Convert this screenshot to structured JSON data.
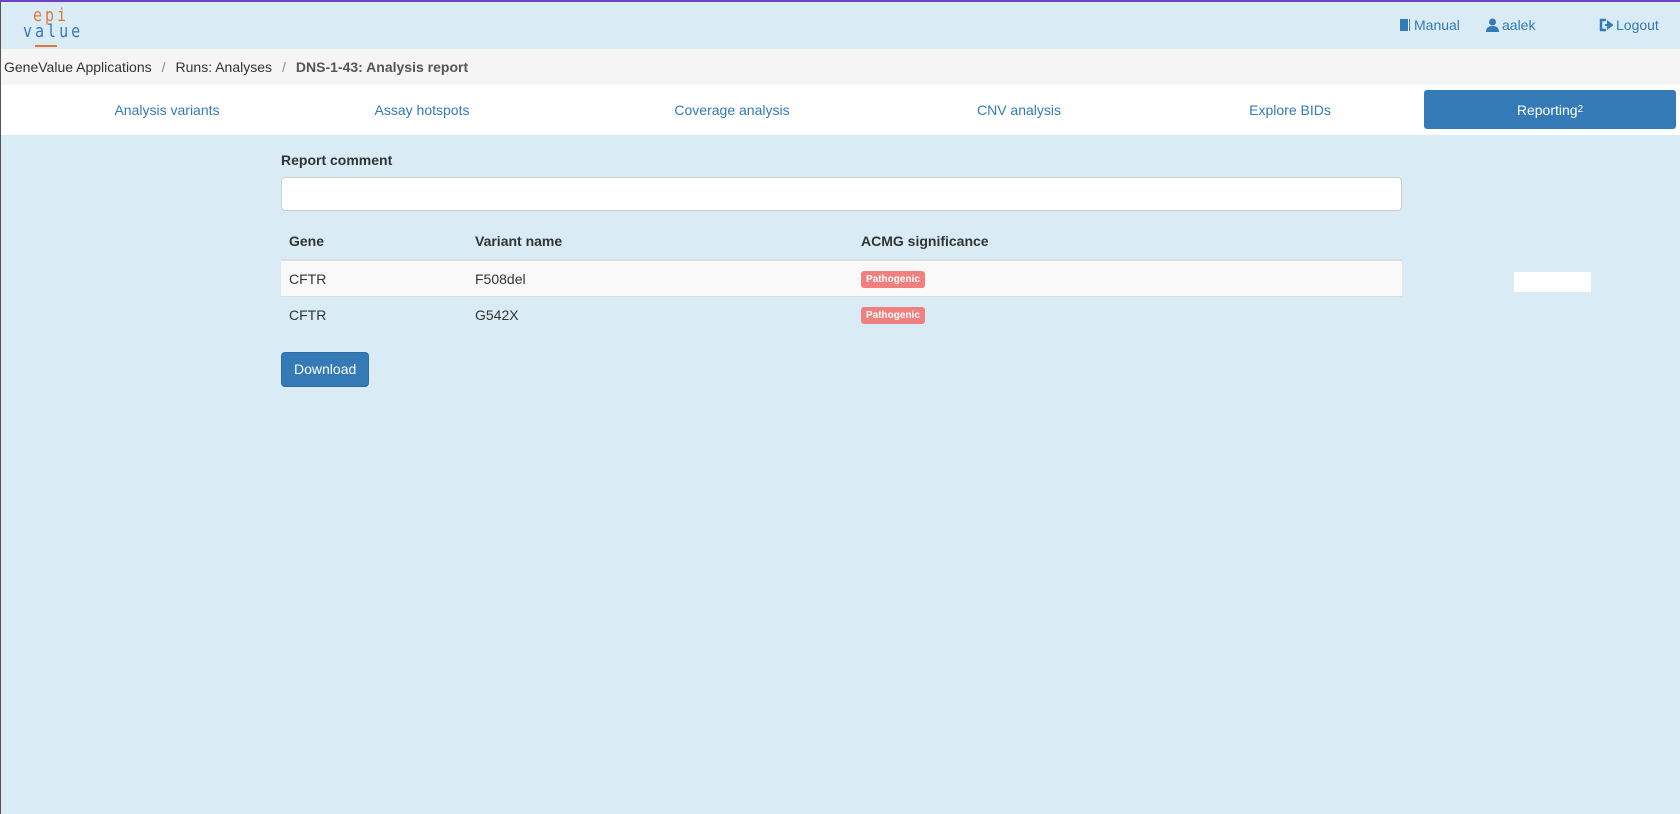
{
  "header": {
    "logo_top": "epi",
    "logo_bottom": "value",
    "manual": "Manual",
    "user": "aalek",
    "logout": "Logout"
  },
  "breadcrumb": [
    "GeneValue Applications",
    "Runs: Analyses",
    "DNS-1-43: Analysis report"
  ],
  "breadcrumb_sep": "/",
  "tabs": [
    {
      "label": "Analysis variants"
    },
    {
      "label": "Assay hotspots"
    },
    {
      "label": "Coverage analysis"
    },
    {
      "label": "CNV analysis"
    },
    {
      "label": "Explore BIDs"
    },
    {
      "label": "Reporting",
      "badge": "2",
      "active": true
    }
  ],
  "report": {
    "comment_label": "Report comment",
    "comment_value": "",
    "columns": [
      "Gene",
      "Variant name",
      "ACMG significance"
    ],
    "rows": [
      {
        "gene": "CFTR",
        "variant": "F508del",
        "acmg": "Pathogenic"
      },
      {
        "gene": "CFTR",
        "variant": "G542X",
        "acmg": "Pathogenic"
      }
    ],
    "download": "Download"
  },
  "colors": {
    "accent": "#337ab7",
    "badge_pathogenic": "#f08080",
    "background": "#d9ecf5"
  }
}
